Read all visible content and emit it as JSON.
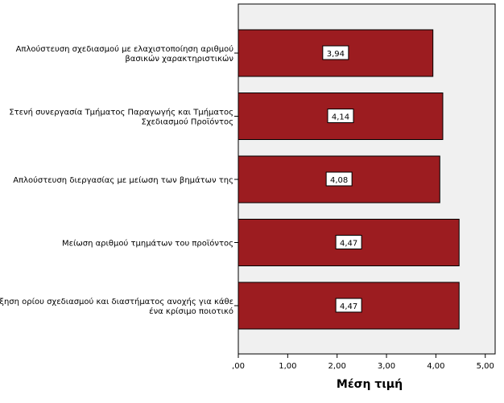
{
  "chart_data": {
    "type": "bar",
    "orientation": "horizontal",
    "x_label": "Μέση τιμή",
    "categories": [
      "Απλούστευση σχεδιασμού με ελαχιστοποίηση  αριθμού\nβασικών χαρακτηριστικών",
      "Στενή συνεργασία Τμήματος Παραγωγής και Τμήματος\nΣχεδιασμού Προϊόντος",
      "Απλούστευση διεργασίας με μείωση των βημάτων της",
      "Μείωση αριθμού τμημάτων του προϊόντος",
      "Αύξηση ορίου σχεδιασμού και διαστήματος ανοχής για κάθε\nένα  κρίσιμο ποιοτικό"
    ],
    "values": [
      3.94,
      4.14,
      4.08,
      4.47,
      4.47
    ],
    "value_labels": [
      "3,94",
      "4,14",
      "4,08",
      "4,47",
      "4,47"
    ],
    "color": "#9c1c20",
    "xlim": [
      0,
      5.2
    ],
    "xticks": [
      {
        "value": 0,
        "label": ",00"
      },
      {
        "value": 1,
        "label": "1,00"
      },
      {
        "value": 2,
        "label": "2,00"
      },
      {
        "value": 3,
        "label": "3,00"
      },
      {
        "value": 4,
        "label": "4,00"
      },
      {
        "value": 5,
        "label": "5,00"
      }
    ]
  }
}
